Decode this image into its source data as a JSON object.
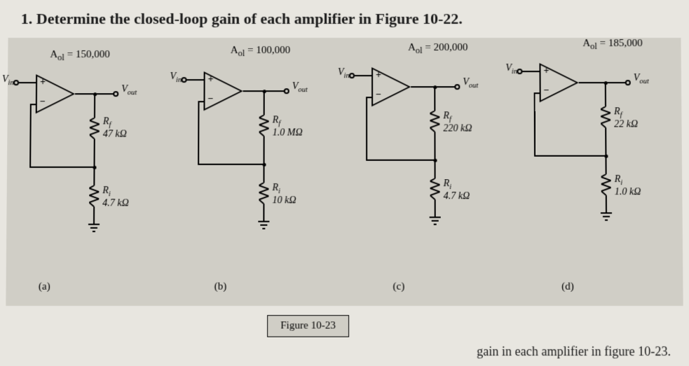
{
  "question_number": "1.",
  "question_text": "Determine the closed-loop gain of each amplifier in Figure 10-22.",
  "figure_caption": "Figure 10-23",
  "bottom_fragment": "gain in each amplifier in figure 10-23.",
  "colors": {
    "page_bg": "#e8e6e0",
    "figure_bg": "#d0cec6",
    "line": "#000000"
  },
  "circuits": [
    {
      "part": "(a)",
      "gain_html": "A<sub>ol</sub> = 150,000",
      "vin": "V",
      "vin_sub": "in",
      "vout": "V",
      "vout_sub": "out",
      "rf_label": "R",
      "rf_sub": "f",
      "rf_value": "47 kΩ",
      "ri_label": "R",
      "ri_sub": "i",
      "ri_value": "4.7 kΩ"
    },
    {
      "part": "(b)",
      "gain_html": "A<sub>ol</sub> = 100,000",
      "vin": "V",
      "vin_sub": "in",
      "vout": "V",
      "vout_sub": "out",
      "rf_label": "R",
      "rf_sub": "f",
      "rf_value": "1.0 MΩ",
      "ri_label": "R",
      "ri_sub": "i",
      "ri_value": "10 kΩ"
    },
    {
      "part": "(c)",
      "gain_html": "A<sub>ol</sub> = 200,000",
      "vin": "V",
      "vin_sub": "in",
      "vout": "V",
      "vout_sub": "out",
      "rf_label": "R",
      "rf_sub": "f",
      "rf_value": "220 kΩ",
      "ri_label": "R",
      "ri_sub": "i",
      "ri_value": "4.7 kΩ"
    },
    {
      "part": "(d)",
      "gain_html": "A<sub>ol</sub> = 185,000",
      "vin": "V",
      "vin_sub": "in",
      "vout": "V",
      "vout_sub": "out",
      "rf_label": "R",
      "rf_sub": "f",
      "rf_value": "22 kΩ",
      "ri_label": "R",
      "ri_sub": "i",
      "ri_value": "1.0 kΩ"
    }
  ]
}
